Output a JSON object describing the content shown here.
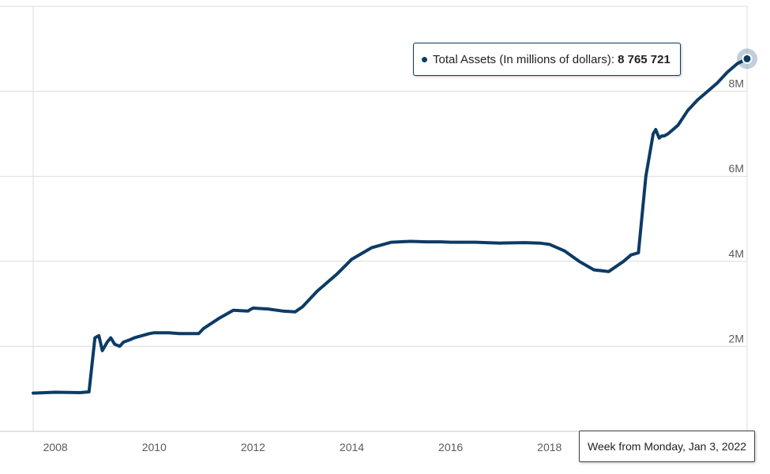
{
  "chart_data": {
    "type": "line",
    "title": "",
    "xlabel": "",
    "ylabel": "",
    "x_tick_labels": [
      "2008",
      "2010",
      "2012",
      "2014",
      "2016",
      "2018"
    ],
    "y_tick_labels": [
      "2M",
      "4M",
      "6M",
      "8M"
    ],
    "x_range": [
      2007.55,
      2022.0
    ],
    "ylim": [
      0,
      10000000
    ],
    "grid": "horizontal",
    "y_axis_side": "right",
    "series": [
      {
        "name": "Total Assets (In millions of dollars)",
        "color": "#0d3b66",
        "x": [
          2007.55,
          2008.0,
          2008.5,
          2008.68,
          2008.72,
          2008.8,
          2008.88,
          2008.95,
          2009.05,
          2009.12,
          2009.2,
          2009.3,
          2009.38,
          2009.5,
          2009.6,
          2009.75,
          2009.9,
          2010.0,
          2010.3,
          2010.5,
          2010.9,
          2011.0,
          2011.3,
          2011.6,
          2011.9,
          2011.95,
          2012.0,
          2012.3,
          2012.6,
          2012.85,
          2013.0,
          2013.3,
          2013.7,
          2014.0,
          2014.4,
          2014.8,
          2015.2,
          2015.5,
          2015.8,
          2016.0,
          2016.5,
          2017.0,
          2017.5,
          2017.8,
          2018.0,
          2018.3,
          2018.6,
          2018.9,
          2019.2,
          2019.5,
          2019.65,
          2019.8,
          2019.95,
          2020.1,
          2020.15,
          2020.22,
          2020.27,
          2020.32,
          2020.4,
          2020.6,
          2020.8,
          2021.0,
          2021.2,
          2021.4,
          2021.6,
          2021.8,
          2022.0
        ],
        "y": [
          900000,
          920000,
          910000,
          930000,
          1350000,
          2200000,
          2250000,
          1900000,
          2100000,
          2200000,
          2050000,
          2000000,
          2100000,
          2150000,
          2200000,
          2250000,
          2300000,
          2320000,
          2320000,
          2300000,
          2300000,
          2420000,
          2650000,
          2850000,
          2830000,
          2870000,
          2900000,
          2880000,
          2830000,
          2810000,
          2930000,
          3300000,
          3700000,
          4050000,
          4320000,
          4450000,
          4470000,
          4460000,
          4460000,
          4450000,
          4450000,
          4430000,
          4440000,
          4430000,
          4400000,
          4250000,
          4000000,
          3800000,
          3760000,
          4000000,
          4150000,
          4200000,
          6000000,
          7000000,
          7100000,
          6900000,
          6950000,
          6950000,
          7000000,
          7200000,
          7550000,
          7800000,
          8000000,
          8200000,
          8450000,
          8650000,
          8765721
        ]
      }
    ]
  },
  "tooltip": {
    "series_label": "Total Assets (In millions of dollars):",
    "value": "8 765 721",
    "date": "Week from Monday, Jan 3, 2022"
  }
}
